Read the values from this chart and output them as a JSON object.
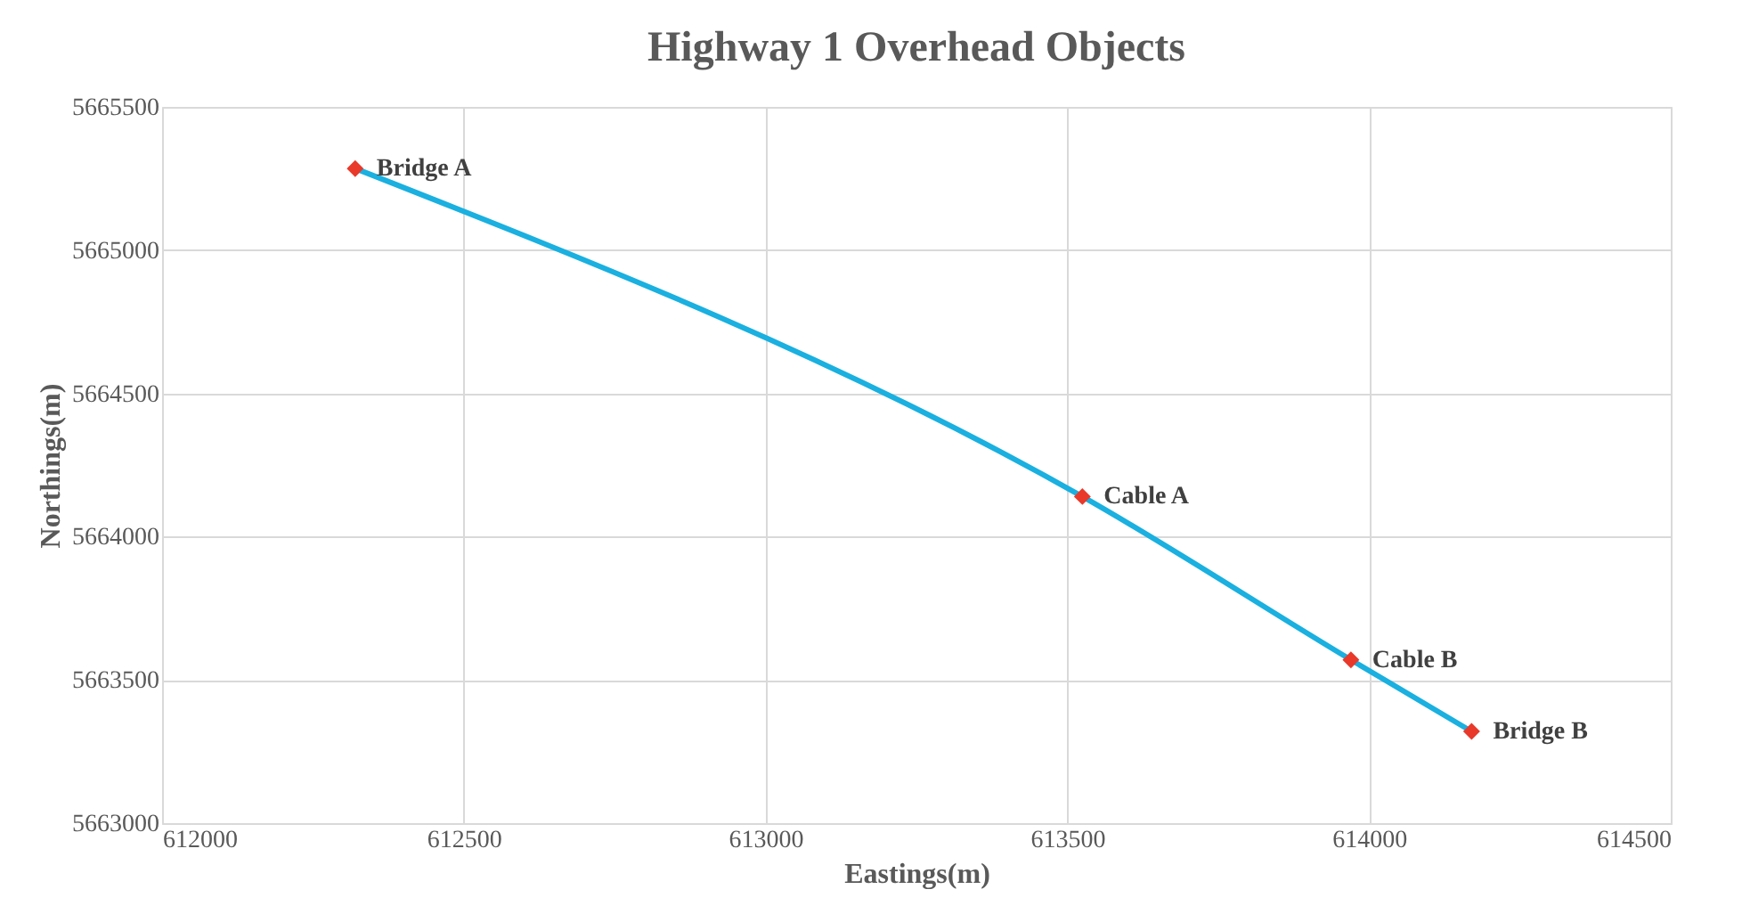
{
  "chart_data": {
    "type": "line",
    "title": "Highway 1 Overhead Objects",
    "xlabel": "Eastings(m)",
    "ylabel": "Northings(m)",
    "xlim": [
      612000,
      614500
    ],
    "xticks": [
      612000,
      612500,
      613000,
      613500,
      614000,
      614500
    ],
    "ylim": [
      5663000,
      5665500
    ],
    "yticks": [
      5663000,
      5663500,
      5664000,
      5664500,
      5665000,
      5665500
    ],
    "grid": true,
    "series": [
      {
        "color": "#1ab0e0",
        "marker": "none",
        "line_style": "solid",
        "x": [
          612320,
          613525,
          613970,
          614170
        ],
        "values": [
          5665285,
          5664140,
          5663570,
          5663320
        ]
      },
      {
        "type": "scatter",
        "color": "#e8392a",
        "marker": "diamond",
        "x": [
          612320,
          613525,
          613970,
          614170
        ],
        "values": [
          5665285,
          5664140,
          5663570,
          5663320
        ]
      }
    ],
    "annotations": [
      {
        "text": "Bridge A",
        "x": 612320,
        "y": 5665285
      },
      {
        "text": "Cable A",
        "x": 613525,
        "y": 5664140
      },
      {
        "text": "Cable B",
        "x": 613970,
        "y": 5663570
      },
      {
        "text": "Bridge B",
        "x": 614170,
        "y": 5663320
      }
    ]
  }
}
